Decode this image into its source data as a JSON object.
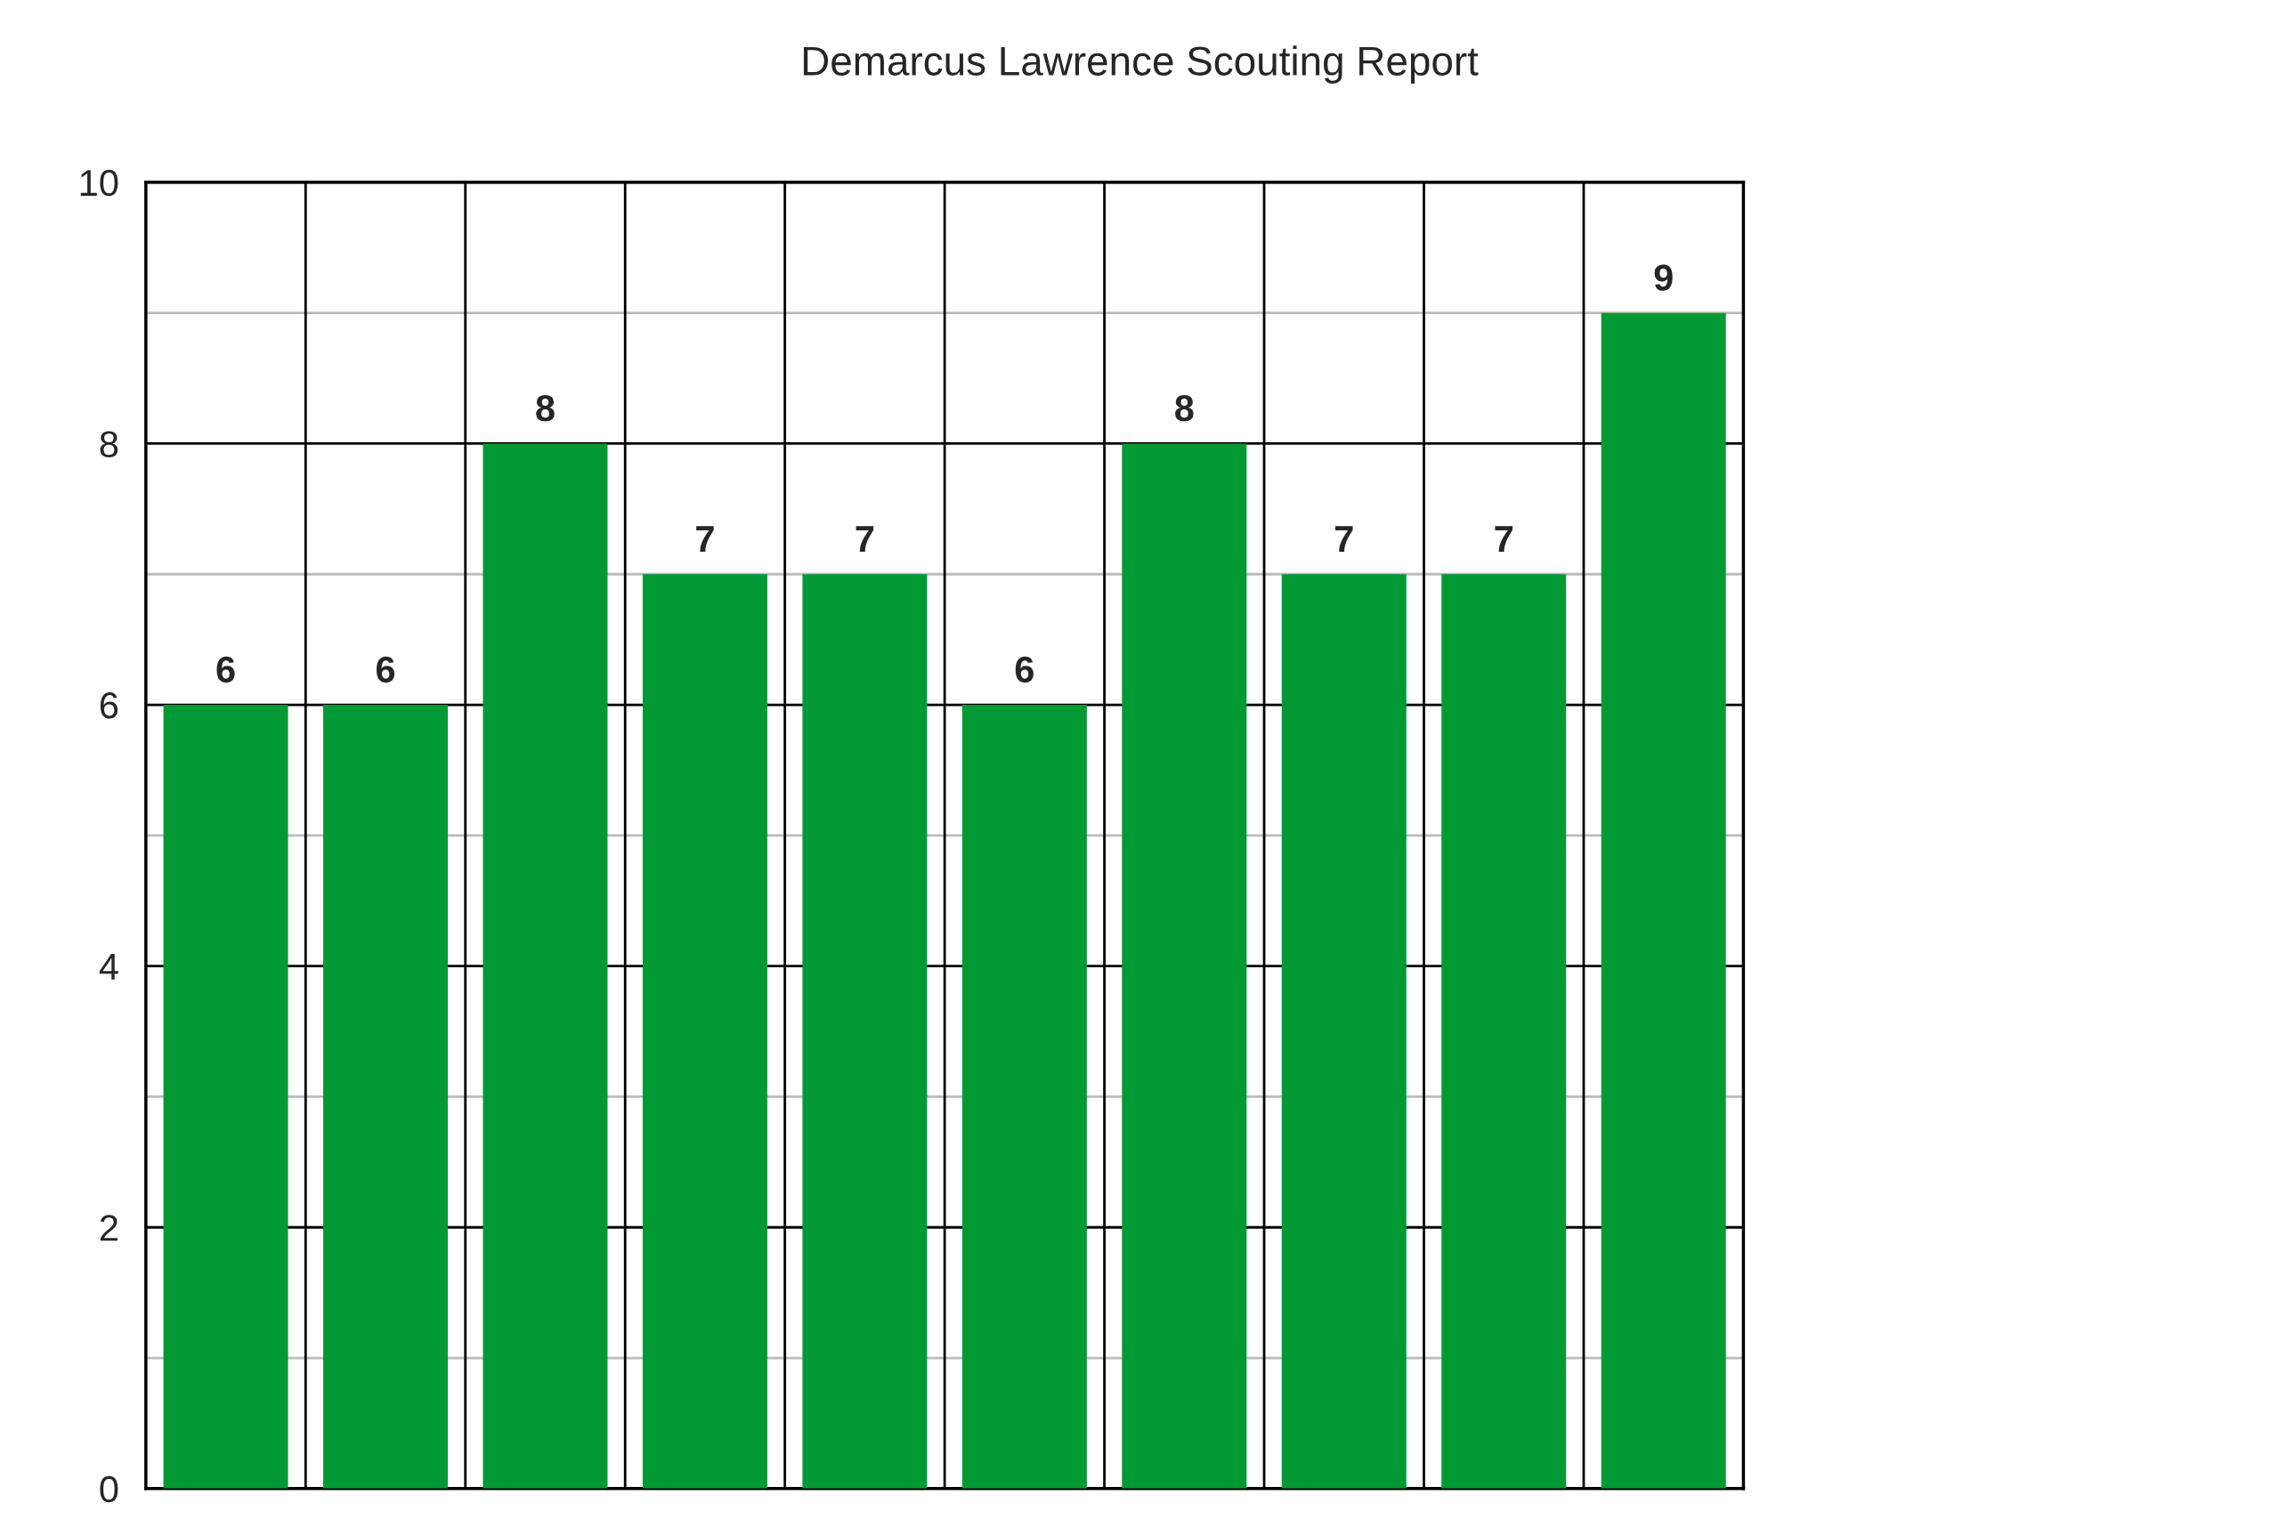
{
  "chart_data": {
    "type": "bar",
    "title": "Demarcus Lawrence Scouting Report",
    "categories": [
      null,
      null,
      null,
      null,
      null,
      null,
      null,
      null,
      null,
      null
    ],
    "values": [
      6,
      6,
      8,
      7,
      7,
      6,
      8,
      7,
      7,
      9
    ],
    "color": "#009933",
    "ylim": [
      0,
      10
    ],
    "yticks": [
      0,
      {
        "value": 1,
        "label": null
      },
      2,
      {
        "value": 3,
        "label": null
      },
      4,
      {
        "value": 5,
        "label": null
      },
      6,
      {
        "value": 7,
        "label": null
      },
      8,
      {
        "value": 9,
        "label": null
      },
      10
    ],
    "grid": true,
    "data_labels": true
  }
}
